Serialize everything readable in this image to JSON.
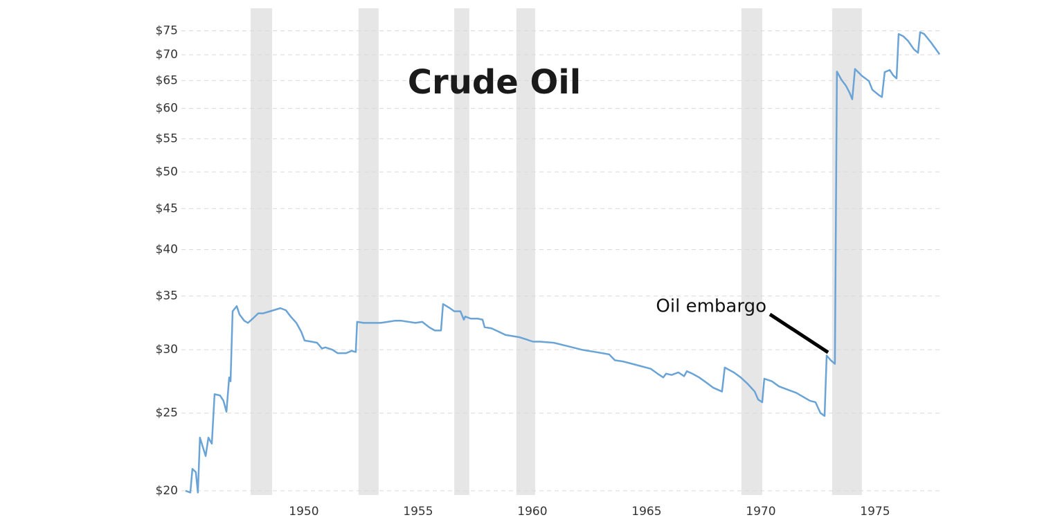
{
  "chart_data": {
    "type": "line",
    "title": "Crude Oil",
    "annotation": "Oil embargo",
    "color": "#6aa3d6",
    "band_color": "#e6e6e6",
    "log_scale": true,
    "grid": true,
    "xlim": [
      1944.82,
      1977.82
    ],
    "xticks": [
      1950,
      1955,
      1960,
      1965,
      1970,
      1975
    ],
    "ylim": [
      19.76,
      80
    ],
    "yticks": [
      {
        "value": 20,
        "label": "$20"
      },
      {
        "value": 25,
        "label": "$25"
      },
      {
        "value": 30,
        "label": "$30"
      },
      {
        "value": 35,
        "label": "$35"
      },
      {
        "value": 40,
        "label": "$40"
      },
      {
        "value": 45,
        "label": "$45"
      },
      {
        "value": 50,
        "label": "$50"
      },
      {
        "value": 55,
        "label": "$55"
      },
      {
        "value": 60,
        "label": "$60"
      },
      {
        "value": 65,
        "label": "$65"
      },
      {
        "value": 70,
        "label": "$70"
      },
      {
        "value": 75,
        "label": "$75"
      }
    ],
    "recessions": [
      [
        1947.67,
        1948.61
      ],
      [
        1952.39,
        1953.27
      ],
      [
        1956.58,
        1957.24
      ],
      [
        1959.3,
        1960.12
      ],
      [
        1969.15,
        1970.06
      ],
      [
        1973.12,
        1974.42
      ]
    ],
    "x": [
      1944.82,
      1945.03,
      1945.12,
      1945.27,
      1945.36,
      1945.45,
      1945.7,
      1945.82,
      1945.97,
      1946.09,
      1946.33,
      1946.48,
      1946.61,
      1946.73,
      1946.79,
      1946.88,
      1947.06,
      1947.18,
      1947.39,
      1947.55,
      1947.76,
      1948.0,
      1948.21,
      1948.52,
      1948.82,
      1948.97,
      1949.21,
      1949.42,
      1949.67,
      1949.88,
      1950.03,
      1950.33,
      1950.58,
      1950.79,
      1950.94,
      1951.24,
      1951.48,
      1951.85,
      1952.09,
      1952.27,
      1952.33,
      1952.61,
      1952.76,
      1953.06,
      1953.36,
      1953.67,
      1953.97,
      1954.27,
      1954.88,
      1955.18,
      1955.48,
      1955.73,
      1956.0,
      1956.09,
      1956.39,
      1956.58,
      1956.85,
      1957.0,
      1957.06,
      1957.3,
      1957.61,
      1957.82,
      1957.91,
      1958.21,
      1958.52,
      1958.82,
      1959.12,
      1959.42,
      1959.73,
      1960.03,
      1960.33,
      1960.94,
      1961.55,
      1962.15,
      1962.76,
      1963.36,
      1963.61,
      1963.97,
      1964.58,
      1965.18,
      1965.48,
      1965.73,
      1965.85,
      1966.09,
      1966.39,
      1966.64,
      1966.76,
      1967.0,
      1967.3,
      1967.61,
      1967.91,
      1968.3,
      1968.42,
      1968.82,
      1969.12,
      1969.42,
      1969.73,
      1969.88,
      1970.06,
      1970.15,
      1970.48,
      1970.79,
      1971.24,
      1971.55,
      1971.85,
      1972.15,
      1972.39,
      1972.61,
      1972.79,
      1972.88,
      1973.06,
      1973.24,
      1973.33,
      1973.52,
      1973.73,
      1973.88,
      1974.0,
      1974.12,
      1974.42,
      1974.73,
      1974.88,
      1975.18,
      1975.3,
      1975.42,
      1975.64,
      1975.79,
      1975.94,
      1976.03,
      1976.24,
      1976.45,
      1976.7,
      1976.88,
      1976.97,
      1977.15,
      1977.45,
      1977.82
    ],
    "values": [
      20.0,
      19.9,
      21.3,
      21.1,
      19.9,
      23.3,
      22.1,
      23.3,
      22.9,
      26.4,
      26.3,
      25.9,
      25.1,
      27.7,
      27.4,
      33.5,
      34.0,
      33.2,
      32.6,
      32.4,
      32.8,
      33.3,
      33.3,
      33.5,
      33.7,
      33.8,
      33.6,
      33.0,
      32.4,
      31.6,
      30.8,
      30.7,
      30.6,
      30.1,
      30.2,
      30.0,
      29.7,
      29.7,
      29.9,
      29.8,
      32.5,
      32.4,
      32.4,
      32.4,
      32.4,
      32.5,
      32.6,
      32.6,
      32.4,
      32.5,
      32.0,
      31.7,
      31.7,
      34.2,
      33.8,
      33.5,
      33.5,
      32.7,
      33.0,
      32.8,
      32.8,
      32.7,
      32.0,
      31.9,
      31.6,
      31.3,
      31.2,
      31.1,
      30.9,
      30.7,
      30.7,
      30.6,
      30.3,
      30.0,
      29.8,
      29.6,
      29.1,
      29.0,
      28.7,
      28.4,
      28.0,
      27.7,
      28.0,
      27.9,
      28.1,
      27.8,
      28.2,
      28.0,
      27.7,
      27.3,
      26.9,
      26.6,
      28.5,
      28.1,
      27.7,
      27.2,
      26.6,
      26.0,
      25.8,
      27.6,
      27.4,
      27.0,
      26.7,
      26.5,
      26.2,
      25.9,
      25.8,
      25.0,
      24.8,
      29.5,
      29.1,
      28.8,
      66.7,
      65.2,
      64.0,
      62.8,
      61.6,
      67.2,
      65.9,
      64.9,
      63.3,
      62.3,
      62.0,
      66.6,
      67.0,
      66.0,
      65.4,
      74.3,
      73.8,
      72.8,
      71.1,
      70.4,
      74.7,
      74.3,
      72.5,
      70.1
    ]
  }
}
